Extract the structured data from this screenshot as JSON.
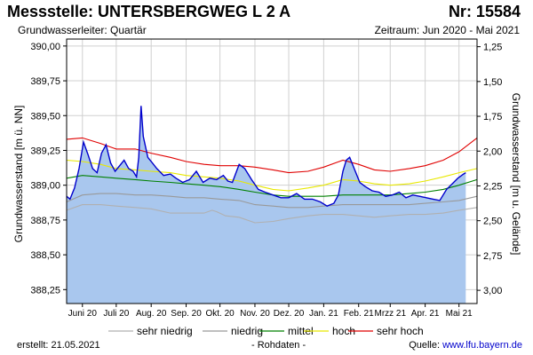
{
  "header": {
    "title": "Messstelle: UNTERSBERGWEG L 2 A",
    "nr": "Nr: 15584",
    "aquifer": "Grundwasserleiter: Quartär",
    "period": "Zeitraum: Jun 2020 - Mai 2021"
  },
  "footer": {
    "created": "erstellt:  21.05.2021",
    "raw": "- Rohdaten -",
    "source_prefix": "Quelle: ",
    "source_url": "www.lfu.bayern.de"
  },
  "colors": {
    "fill": "#a9c7ee",
    "measured": "#0000cc",
    "sehr_niedrig": "#b0b0b0",
    "niedrig": "#999999",
    "mittel": "#008000",
    "hoch": "#e8e800",
    "sehr_hoch": "#e00000",
    "grid": "#d0d0d0"
  },
  "chart_data": {
    "type": "area",
    "ylabel": "Grundwasserstand [m ü. NN]",
    "ylabel_right": "Grundwasserstand [m u. Gelände]",
    "ylim": [
      388.15,
      390.05
    ],
    "ylim_right": [
      3.095,
      1.195
    ],
    "yticks": [
      390.0,
      389.75,
      389.5,
      389.25,
      389.0,
      388.75,
      388.5,
      388.25
    ],
    "yticks_right": [
      1.25,
      1.5,
      1.75,
      2.0,
      2.25,
      2.5,
      2.75,
      3.0
    ],
    "ytick_labels": [
      "390,00",
      "389,75",
      "389,50",
      "389,25",
      "389,00",
      "388,75",
      "388,50",
      "388,25"
    ],
    "ytick_labels_right": [
      "1,25",
      "1,50",
      "1,75",
      "2,00",
      "2,25",
      "2,50",
      "2,75",
      "3,00"
    ],
    "x_domain": [
      "2020-06-01",
      "2021-05-31"
    ],
    "xtick_labels": [
      "Juni 20",
      "Juli 20",
      "Aug. 20",
      "Sep. 20",
      "Okt. 20",
      "Nov. 20",
      "Dez. 20",
      "Jan. 21",
      "Feb. 21",
      "Mrzz 21",
      "Apr. 21",
      "Mai 21"
    ],
    "xtick_dates": [
      "2020-06-15",
      "2020-07-15",
      "2020-08-15",
      "2020-09-15",
      "2020-10-15",
      "2020-11-15",
      "2020-12-15",
      "2021-01-15",
      "2021-02-15",
      "2021-03-15",
      "2021-04-15",
      "2021-05-15"
    ],
    "grid": true,
    "legend_position": "bottom",
    "legend": [
      {
        "key": "sehr_niedrig",
        "label": "sehr niedrig"
      },
      {
        "key": "niedrig",
        "label": "niedrig"
      },
      {
        "key": "mittel",
        "label": "mittel"
      },
      {
        "key": "hoch",
        "label": "hoch"
      },
      {
        "key": "sehr_hoch",
        "label": "sehr hoch"
      }
    ],
    "series": [
      {
        "key": "measured",
        "x": [
          "2020-06-01",
          "2020-06-04",
          "2020-06-08",
          "2020-06-12",
          "2020-06-16",
          "2020-06-20",
          "2020-06-24",
          "2020-06-28",
          "2020-07-02",
          "2020-07-06",
          "2020-07-10",
          "2020-07-14",
          "2020-07-18",
          "2020-07-22",
          "2020-07-26",
          "2020-07-30",
          "2020-08-02",
          "2020-08-04",
          "2020-08-06",
          "2020-08-08",
          "2020-08-12",
          "2020-08-16",
          "2020-08-20",
          "2020-08-26",
          "2020-09-01",
          "2020-09-06",
          "2020-09-12",
          "2020-09-18",
          "2020-09-24",
          "2020-09-30",
          "2020-10-06",
          "2020-10-12",
          "2020-10-18",
          "2020-10-22",
          "2020-10-26",
          "2020-11-01",
          "2020-11-06",
          "2020-11-12",
          "2020-11-18",
          "2020-11-24",
          "2020-12-01",
          "2020-12-08",
          "2020-12-15",
          "2020-12-22",
          "2020-12-29",
          "2021-01-05",
          "2021-01-12",
          "2021-01-18",
          "2021-01-24",
          "2021-01-28",
          "2021-02-01",
          "2021-02-04",
          "2021-02-07",
          "2021-02-11",
          "2021-02-16",
          "2021-02-21",
          "2021-02-27",
          "2021-03-05",
          "2021-03-11",
          "2021-03-17",
          "2021-03-23",
          "2021-03-29",
          "2021-04-04",
          "2021-04-10",
          "2021-04-16",
          "2021-04-22",
          "2021-04-28",
          "2021-05-04",
          "2021-05-09",
          "2021-05-14",
          "2021-05-19",
          "2021-05-21"
        ],
        "y": [
          388.92,
          388.9,
          388.98,
          389.12,
          389.31,
          389.22,
          389.12,
          389.09,
          389.23,
          389.29,
          389.16,
          389.1,
          389.14,
          389.18,
          389.12,
          389.1,
          389.06,
          389.2,
          389.57,
          389.35,
          389.2,
          389.16,
          389.12,
          389.07,
          389.08,
          389.05,
          389.02,
          389.04,
          389.1,
          389.02,
          389.05,
          389.04,
          389.07,
          389.03,
          389.02,
          389.15,
          389.12,
          389.04,
          388.97,
          388.95,
          388.93,
          388.91,
          388.91,
          388.94,
          388.9,
          388.9,
          388.88,
          388.85,
          388.87,
          388.93,
          389.1,
          389.18,
          389.2,
          389.12,
          389.02,
          388.99,
          388.96,
          388.95,
          388.92,
          388.93,
          388.95,
          388.91,
          388.93,
          388.92,
          388.91,
          388.9,
          388.89,
          388.97,
          389.01,
          389.05,
          389.08,
          389.09
        ]
      },
      {
        "key": "sehr_hoch",
        "x": [
          "2020-06-01",
          "2020-06-15",
          "2020-07-01",
          "2020-07-15",
          "2020-08-01",
          "2020-08-15",
          "2020-09-01",
          "2020-09-15",
          "2020-10-01",
          "2020-10-15",
          "2020-11-01",
          "2020-11-15",
          "2020-12-01",
          "2020-12-15",
          "2021-01-01",
          "2021-01-15",
          "2021-02-01",
          "2021-02-15",
          "2021-03-01",
          "2021-03-15",
          "2021-04-01",
          "2021-04-15",
          "2021-05-01",
          "2021-05-15",
          "2021-05-31"
        ],
        "y": [
          389.33,
          389.34,
          389.3,
          389.26,
          389.26,
          389.23,
          389.2,
          389.17,
          389.15,
          389.14,
          389.14,
          389.13,
          389.11,
          389.09,
          389.1,
          389.13,
          389.18,
          389.15,
          389.11,
          389.1,
          389.12,
          389.14,
          389.18,
          389.24,
          389.34
        ]
      },
      {
        "key": "hoch",
        "x": [
          "2020-06-01",
          "2020-06-15",
          "2020-07-01",
          "2020-07-15",
          "2020-08-01",
          "2020-08-15",
          "2020-09-01",
          "2020-09-15",
          "2020-10-01",
          "2020-10-15",
          "2020-11-01",
          "2020-11-15",
          "2020-12-01",
          "2020-12-15",
          "2021-01-01",
          "2021-01-15",
          "2021-02-01",
          "2021-02-15",
          "2021-03-01",
          "2021-03-15",
          "2021-04-01",
          "2021-04-15",
          "2021-05-01",
          "2021-05-15",
          "2021-05-31"
        ],
        "y": [
          389.18,
          389.17,
          389.15,
          389.12,
          389.11,
          389.1,
          389.09,
          389.07,
          389.06,
          389.05,
          389.03,
          389.0,
          388.97,
          388.96,
          388.98,
          389.0,
          389.04,
          389.03,
          389.01,
          389.0,
          389.01,
          389.03,
          389.06,
          389.09,
          389.12
        ]
      },
      {
        "key": "mittel",
        "x": [
          "2020-06-01",
          "2020-06-15",
          "2020-07-01",
          "2020-07-15",
          "2020-08-01",
          "2020-08-15",
          "2020-09-01",
          "2020-09-15",
          "2020-10-01",
          "2020-10-15",
          "2020-11-01",
          "2020-11-15",
          "2020-12-01",
          "2020-12-15",
          "2021-01-01",
          "2021-01-15",
          "2021-02-01",
          "2021-02-15",
          "2021-03-01",
          "2021-03-15",
          "2021-04-01",
          "2021-04-15",
          "2021-05-01",
          "2021-05-15",
          "2021-05-31"
        ],
        "y": [
          389.05,
          389.07,
          389.06,
          389.05,
          389.04,
          389.03,
          389.02,
          389.01,
          389.0,
          388.99,
          388.97,
          388.95,
          388.93,
          388.92,
          388.92,
          388.92,
          388.93,
          388.93,
          388.93,
          388.93,
          388.94,
          388.95,
          388.97,
          389.0,
          389.04
        ]
      },
      {
        "key": "niedrig",
        "x": [
          "2020-06-01",
          "2020-06-15",
          "2020-07-01",
          "2020-07-15",
          "2020-08-01",
          "2020-08-15",
          "2020-09-01",
          "2020-09-15",
          "2020-10-01",
          "2020-10-15",
          "2020-11-01",
          "2020-11-15",
          "2020-12-01",
          "2020-12-15",
          "2021-01-01",
          "2021-01-15",
          "2021-02-01",
          "2021-02-15",
          "2021-03-01",
          "2021-03-15",
          "2021-04-01",
          "2021-04-15",
          "2021-05-01",
          "2021-05-15",
          "2021-05-31"
        ],
        "y": [
          388.88,
          388.93,
          388.94,
          388.94,
          388.93,
          388.93,
          388.92,
          388.91,
          388.91,
          388.9,
          388.89,
          388.86,
          388.85,
          388.84,
          388.84,
          388.85,
          388.86,
          388.86,
          388.86,
          388.86,
          388.86,
          388.87,
          388.88,
          388.89,
          388.92
        ]
      },
      {
        "key": "sehr_niedrig",
        "x": [
          "2020-06-01",
          "2020-06-15",
          "2020-07-01",
          "2020-07-15",
          "2020-08-01",
          "2020-08-15",
          "2020-09-01",
          "2020-09-15",
          "2020-10-01",
          "2020-10-08",
          "2020-10-12",
          "2020-10-20",
          "2020-11-01",
          "2020-11-15",
          "2020-12-01",
          "2020-12-15",
          "2021-01-01",
          "2021-01-15",
          "2021-02-01",
          "2021-02-15",
          "2021-03-01",
          "2021-03-15",
          "2021-04-01",
          "2021-04-15",
          "2021-05-01",
          "2021-05-15",
          "2021-05-31"
        ],
        "y": [
          388.82,
          388.86,
          388.86,
          388.85,
          388.84,
          388.83,
          388.8,
          388.8,
          388.8,
          388.82,
          388.81,
          388.78,
          388.77,
          388.73,
          388.74,
          388.76,
          388.78,
          388.79,
          388.79,
          388.78,
          388.77,
          388.78,
          388.79,
          388.79,
          388.8,
          388.82,
          388.84
        ]
      }
    ]
  }
}
